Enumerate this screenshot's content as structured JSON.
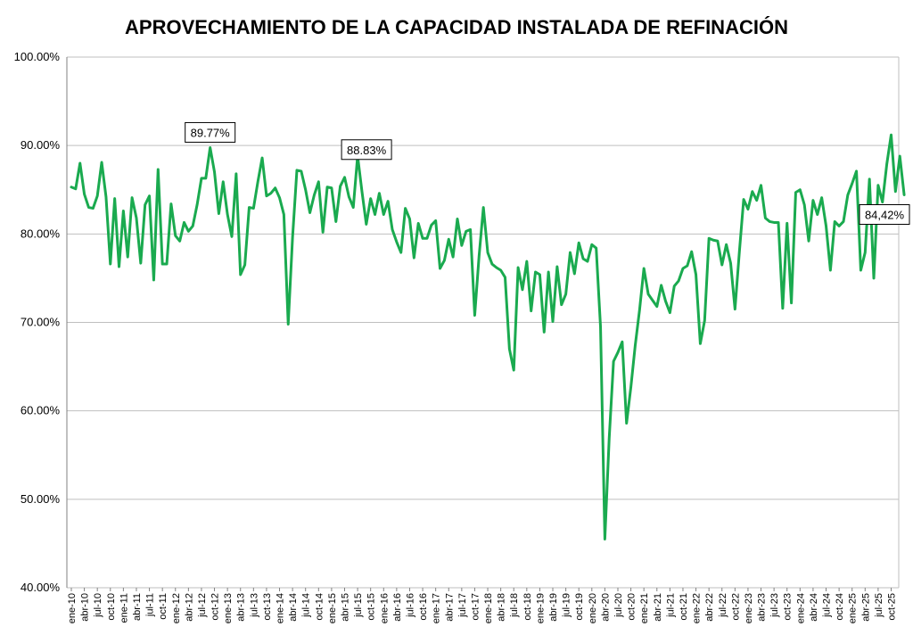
{
  "chart_data": {
    "type": "line",
    "title": "APROVECHAMIENTO DE LA CAPACIDAD INSTALADA DE REFINACIÓN",
    "xlabel": "",
    "ylabel": "",
    "ylim": [
      40,
      100
    ],
    "yticks": [
      "40.00%",
      "50.00%",
      "60.00%",
      "70.00%",
      "80.00%",
      "90.00%",
      "100.00%"
    ],
    "ytick_values": [
      40,
      50,
      60,
      70,
      80,
      90,
      100
    ],
    "x_start": "ene-10",
    "xtick_labels": [
      "ene-10",
      "abr-10",
      "jul-10",
      "oct-10",
      "ene-11",
      "abr-11",
      "jul-11",
      "oct-11",
      "ene-12",
      "abr-12",
      "jul-12",
      "oct-12",
      "ene-13",
      "abr-13",
      "jul-13",
      "oct-13",
      "ene-14",
      "abr-14",
      "jul-14",
      "oct-14",
      "ene-15",
      "abr-15",
      "jul-15",
      "oct-15",
      "ene-16",
      "abr-16",
      "jul-16",
      "oct-16",
      "ene-17",
      "abr-17",
      "jul-17",
      "oct-17",
      "ene-18",
      "abr-18",
      "jul-18",
      "oct-18",
      "ene-19",
      "abr-19",
      "jul-19",
      "oct-19",
      "ene-20",
      "abr-20",
      "jul-20",
      "oct-20",
      "ene-21",
      "abr-21",
      "jul-21",
      "oct-21",
      "ene-22",
      "abr-22",
      "jul-22",
      "oct-22",
      "ene-23",
      "abr-23",
      "jul-23",
      "oct-23",
      "ene-24",
      "abr-24",
      "jul-24",
      "oct-24",
      "ene-25",
      "abr-25",
      "jul-25",
      "oct-25"
    ],
    "grid": true,
    "legend": "none",
    "line_color": "#1aaa4f",
    "series": [
      {
        "values": [
          85.3,
          85.1,
          88.0,
          84.5,
          83.0,
          82.9,
          84.3,
          88.1,
          84.2,
          76.6,
          84.0,
          76.3,
          82.6,
          77.4,
          84.1,
          81.8,
          76.7,
          83.3,
          84.3,
          74.8,
          87.3,
          76.6,
          76.6,
          83.4,
          79.8,
          79.2,
          81.3,
          80.3,
          80.9,
          83.3,
          86.3,
          86.3,
          89.77,
          87.0,
          82.3,
          85.9,
          82.2,
          79.7,
          86.8,
          75.4,
          76.5,
          83.0,
          82.9,
          85.9,
          88.6,
          84.3,
          84.6,
          85.2,
          84.1,
          82.2,
          69.8,
          79.6,
          87.2,
          87.1,
          85.0,
          82.4,
          84.4,
          85.9,
          80.2,
          85.3,
          85.2,
          81.4,
          85.4,
          86.4,
          84.2,
          83.0,
          88.83,
          84.8,
          81.1,
          84.0,
          82.2,
          84.6,
          82.2,
          83.7,
          80.5,
          79.1,
          77.9,
          82.9,
          81.7,
          77.3,
          81.2,
          79.5,
          79.5,
          81.0,
          81.5,
          76.1,
          77.0,
          79.4,
          77.4,
          81.7,
          78.7,
          80.3,
          80.5,
          70.8,
          77.5,
          83.0,
          77.9,
          76.6,
          76.2,
          75.9,
          75.1,
          67.0,
          64.6,
          76.2,
          73.7,
          76.9,
          71.3,
          75.7,
          75.4,
          68.9,
          75.7,
          70.1,
          76.3,
          72.0,
          73.2,
          77.9,
          75.5,
          79.0,
          77.2,
          76.9,
          78.8,
          78.4,
          69.5,
          45.5,
          56.9,
          65.6,
          66.6,
          67.8,
          58.6,
          62.7,
          67.4,
          71.4,
          76.1,
          73.2,
          72.5,
          71.8,
          74.2,
          72.4,
          71.1,
          74.1,
          74.7,
          76.1,
          76.4,
          78.0,
          75.4,
          67.6,
          70.2,
          79.5,
          79.3,
          79.2,
          76.5,
          78.8,
          76.7,
          71.5,
          77.9,
          83.9,
          82.8,
          84.8,
          83.8,
          85.5,
          81.8,
          81.4,
          81.3,
          81.3,
          71.6,
          81.2,
          72.2,
          84.7,
          85.0,
          83.3,
          79.2,
          83.8,
          82.2,
          84.1,
          80.9,
          75.9,
          81.4,
          80.9,
          81.4,
          84.4,
          85.7,
          87.1,
          75.9,
          77.9,
          86.2,
          75.0,
          85.5,
          83.6,
          87.9,
          91.2,
          84.8,
          88.8,
          84.42
        ]
      }
    ],
    "annotations": [
      {
        "label": "89.77%",
        "index": 32,
        "value": 89.77
      },
      {
        "label": "88.83%",
        "index": 66,
        "value": 88.83
      },
      {
        "label": "84,42%",
        "index": 191,
        "value": 84.42
      }
    ]
  }
}
